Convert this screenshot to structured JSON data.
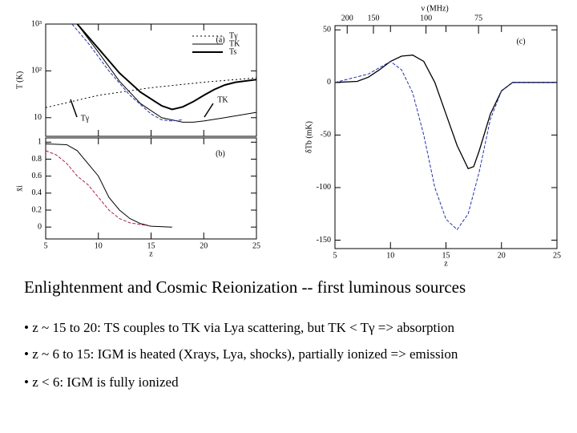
{
  "chart_data": [
    {
      "type": "line",
      "panel_label": "(a)",
      "ylabel": "T (K)",
      "log": true,
      "xlim": [
        5,
        25
      ],
      "xticks": [
        5,
        10,
        15,
        20,
        25
      ],
      "xtick_labels": false,
      "ylim": [
        4,
        1000
      ],
      "yticks": [
        10,
        {
          "value": 100,
          "label": "10²"
        },
        {
          "value": 1000,
          "label": "10³"
        }
      ],
      "annotations": [
        "TK",
        "Tγ"
      ],
      "series": [
        {
          "name": "Tγ",
          "color": "#000000",
          "dash": "2,3",
          "width": 1,
          "x": [
            5,
            10,
            15,
            20,
            25
          ],
          "values": [
            16.4,
            30.0,
            43.7,
            57.3,
            71.0
          ]
        },
        {
          "name": "TK",
          "color": "#000000",
          "dash": "",
          "width": 1,
          "x": [
            8,
            10,
            12,
            14,
            16,
            18,
            19,
            20,
            22,
            25
          ],
          "values": [
            1000,
            250,
            60,
            20,
            10,
            8,
            8,
            8.5,
            10,
            13
          ]
        },
        {
          "name": "Ts",
          "color": "#000000",
          "dash": "",
          "width": 2,
          "x": [
            8,
            10,
            12,
            14,
            16,
            17,
            18,
            19,
            20,
            21,
            22,
            23,
            25
          ],
          "values": [
            1000,
            300,
            90,
            35,
            18,
            15,
            17,
            22,
            30,
            40,
            50,
            57,
            65
          ]
        },
        {
          "color": "#2233aa",
          "dash": "4,2",
          "width": 1,
          "x": [
            7.5,
            9,
            11,
            13,
            15,
            16,
            17,
            18
          ],
          "values": [
            1000,
            400,
            100,
            30,
            12,
            9,
            8.5,
            9
          ]
        }
      ]
    },
    {
      "type": "line",
      "panel_label": "(b)",
      "ylabel": "x̄i",
      "xlabel": "z",
      "log": false,
      "xlim": [
        5,
        25
      ],
      "xticks": [
        5,
        10,
        15,
        20,
        25
      ],
      "xtick_labels": true,
      "ylim": [
        -0.14,
        1.05
      ],
      "yticks": [
        0,
        0.2,
        0.4,
        0.6,
        0.8,
        1
      ],
      "series": [
        {
          "color": "#000000",
          "dash": "",
          "width": 1,
          "x": [
            5,
            7,
            8,
            9,
            10,
            11,
            12,
            13,
            14,
            15,
            17
          ],
          "values": [
            0.98,
            0.97,
            0.9,
            0.75,
            0.6,
            0.35,
            0.2,
            0.1,
            0.04,
            0.01,
            0
          ]
        },
        {
          "color": "#aa2255",
          "dash": "4,2",
          "width": 1,
          "x": [
            5,
            6,
            7,
            8,
            9,
            10,
            11,
            12,
            13,
            15
          ],
          "values": [
            0.9,
            0.85,
            0.75,
            0.6,
            0.5,
            0.35,
            0.2,
            0.1,
            0.05,
            0.01
          ]
        }
      ]
    },
    {
      "type": "line",
      "panel_label": "(c)",
      "ylabel": "δTb (mK)",
      "xlabel": "z",
      "toplabel": "ν (MHz)",
      "log": false,
      "xlim": [
        5,
        25
      ],
      "xticks": [
        5,
        10,
        15,
        20,
        25
      ],
      "xtick_labels": true,
      "ylim": [
        -158,
        54
      ],
      "yticks": [
        -150,
        -100,
        -50,
        0,
        50
      ],
      "nu_ticks": [
        200,
        150,
        100,
        75
      ],
      "series": [
        {
          "color": "#000000",
          "dash": "",
          "width": 1.3,
          "x": [
            5,
            7,
            8,
            9,
            10,
            11,
            12,
            13,
            14,
            15,
            16,
            17,
            17.5,
            18,
            19,
            20,
            21,
            25
          ],
          "values": [
            0,
            1,
            5,
            12,
            20,
            25,
            26,
            20,
            0,
            -30,
            -60,
            -82,
            -80,
            -65,
            -30,
            -8,
            0,
            0
          ]
        },
        {
          "color": "#2233aa",
          "dash": "4,2",
          "width": 1,
          "x": [
            5,
            8,
            10,
            11,
            12,
            13,
            14,
            15,
            16,
            17,
            18,
            19,
            20,
            21,
            25
          ],
          "values": [
            0,
            8,
            20,
            12,
            -10,
            -50,
            -100,
            -130,
            -140,
            -125,
            -85,
            -35,
            -8,
            0,
            0
          ]
        }
      ]
    }
  ],
  "slide": {
    "title": "Enlightenment and Cosmic Reionization -- first luminous sources",
    "bullets": [
      "• z ~ 15 to 20: TS couples to TK via Lya scattering, but TK < Tγ  => absorption",
      "• z ~ 6 to 15: IGM is heated (Xrays, Lya, shocks), partially ionized => emission",
      "• z < 6:  IGM is fully ionized"
    ]
  }
}
